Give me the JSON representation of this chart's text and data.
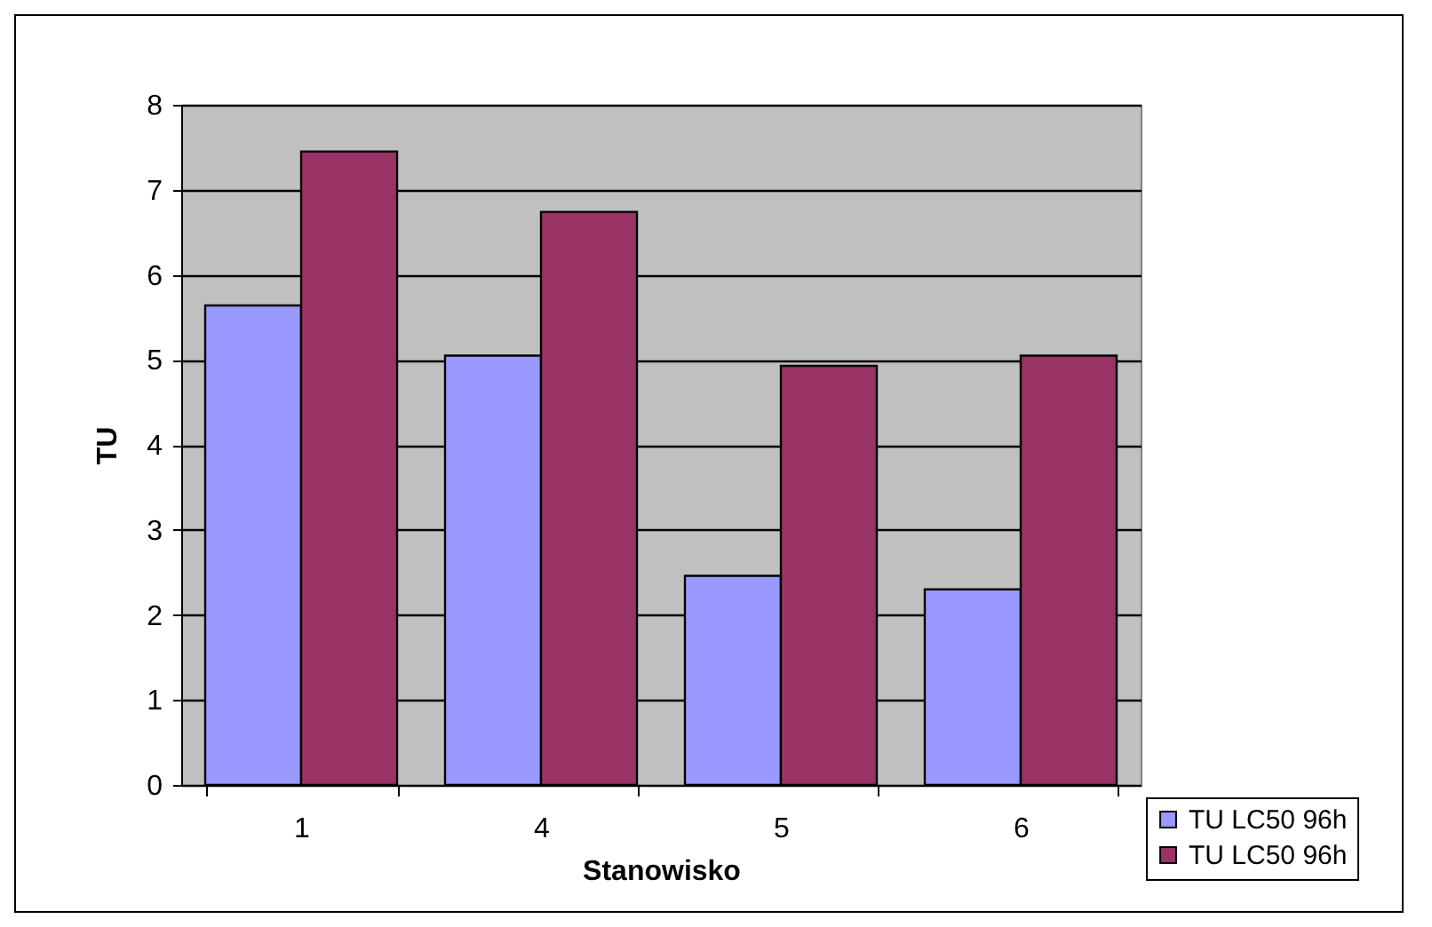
{
  "chart_data": {
    "type": "bar",
    "xlabel": "Stanowisko",
    "ylabel": "TU",
    "categories": [
      "1",
      "4",
      "5",
      "6"
    ],
    "series": [
      {
        "name": "TU LC50 96h",
        "color": "#9999ff",
        "values": [
          5.64,
          5.05,
          2.46,
          2.3
        ]
      },
      {
        "name": "TU LC50 96h",
        "color": "#993366",
        "values": [
          7.45,
          6.74,
          4.93,
          5.05
        ]
      }
    ],
    "ylim": [
      0,
      8
    ],
    "yticks": [
      0,
      1,
      2,
      3,
      4,
      5,
      6,
      7,
      8
    ],
    "grid": "y",
    "legend": "bottom right"
  }
}
